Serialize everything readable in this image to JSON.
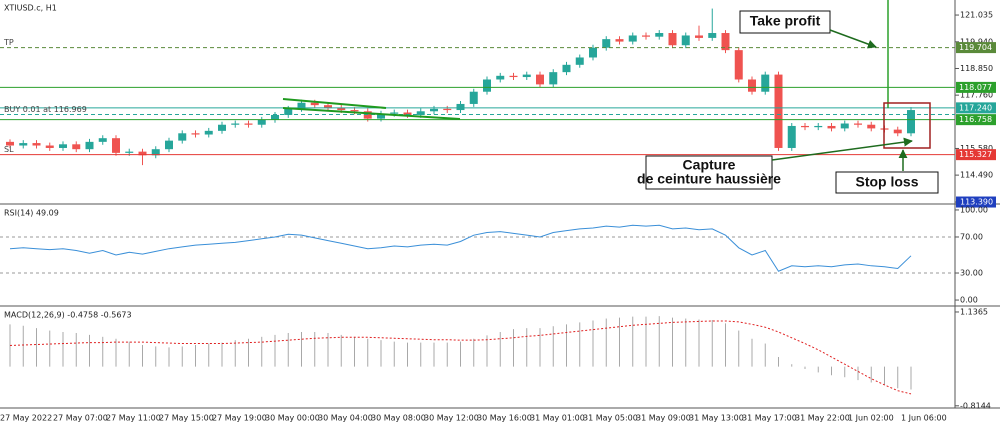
{
  "chart_data": [
    {
      "type": "candlestick",
      "title": "XTIUSD.c, H1",
      "categories": [
        "27 May 2022",
        null,
        null,
        null,
        "27 May 07:00",
        null,
        null,
        null,
        "27 May 11:00",
        null,
        null,
        null,
        "27 May 15:00",
        null,
        null,
        null,
        "27 May 19:00",
        null,
        null,
        null,
        "30 May 00:00",
        null,
        null,
        null,
        "30 May 04:00",
        null,
        null,
        null,
        "30 May 08:00",
        null,
        null,
        null,
        "30 May 12:00",
        null,
        null,
        null,
        "30 May 16:00",
        null,
        null,
        null,
        "31 May 01:00",
        null,
        null,
        null,
        "31 May 05:00",
        null,
        null,
        null,
        "31 May 09:00",
        null,
        null,
        null,
        "31 May 13:00",
        null,
        null,
        null,
        "31 May 17:00",
        null,
        null,
        null,
        "31 May 22:00",
        null,
        null,
        null,
        "1 Jun 02:00",
        null,
        null,
        null,
        "1 Jun 06:00"
      ],
      "open": [
        115.85,
        115.7,
        115.8,
        115.7,
        115.6,
        115.75,
        115.55,
        115.85,
        116.0,
        115.4,
        115.45,
        115.3,
        115.55,
        115.9,
        116.2,
        116.15,
        116.3,
        116.55,
        116.6,
        116.55,
        116.75,
        116.95,
        117.2,
        117.45,
        117.35,
        117.25,
        117.15,
        117.1,
        116.8,
        117.0,
        117.05,
        116.95,
        117.1,
        117.2,
        117.15,
        117.4,
        117.9,
        118.4,
        118.55,
        118.5,
        118.6,
        118.2,
        118.7,
        119.0,
        119.3,
        119.7,
        120.05,
        119.95,
        120.2,
        120.15,
        120.3,
        119.8,
        120.2,
        120.1,
        120.3,
        119.6,
        118.4,
        117.9,
        118.6,
        115.6,
        116.5,
        116.45,
        116.5,
        116.4,
        116.6,
        116.55,
        116.4,
        116.35,
        116.2
      ],
      "high": [
        115.95,
        115.92,
        115.92,
        115.82,
        115.87,
        115.87,
        115.97,
        116.12,
        116.12,
        115.57,
        115.57,
        115.67,
        116.02,
        116.32,
        116.32,
        116.42,
        116.67,
        116.72,
        116.72,
        116.87,
        117.07,
        117.32,
        117.57,
        117.57,
        117.47,
        117.37,
        117.27,
        117.22,
        117.12,
        117.17,
        117.17,
        117.22,
        117.32,
        117.32,
        117.52,
        118.02,
        118.52,
        118.67,
        118.67,
        118.72,
        118.72,
        118.82,
        119.12,
        119.42,
        119.82,
        120.17,
        120.17,
        120.32,
        120.32,
        120.42,
        120.42,
        120.32,
        120.6,
        121.3,
        120.42,
        119.72,
        118.52,
        118.72,
        118.72,
        116.62,
        116.62,
        116.62,
        116.62,
        116.72,
        116.72,
        116.67,
        116.52,
        116.47,
        117.27
      ],
      "low": [
        115.6,
        115.58,
        115.58,
        115.48,
        115.48,
        115.43,
        115.43,
        115.73,
        115.28,
        115.28,
        114.9,
        115.18,
        115.43,
        115.78,
        116.03,
        116.03,
        116.18,
        116.43,
        116.43,
        116.43,
        116.63,
        116.83,
        117.08,
        117.23,
        117.13,
        117.03,
        116.98,
        116.68,
        116.68,
        116.88,
        116.83,
        116.83,
        116.98,
        117.03,
        117.03,
        117.28,
        117.78,
        118.28,
        118.38,
        118.38,
        118.08,
        118.08,
        118.58,
        118.88,
        119.18,
        119.58,
        119.83,
        119.83,
        120.03,
        120.03,
        119.68,
        119.68,
        119.98,
        119.98,
        119.48,
        118.28,
        117.78,
        117.78,
        115.48,
        115.48,
        116.33,
        116.33,
        116.28,
        116.28,
        116.43,
        116.28,
        116.23,
        116.08,
        116.08
      ],
      "close": [
        115.7,
        115.8,
        115.7,
        115.6,
        115.75,
        115.55,
        115.85,
        116.0,
        115.4,
        115.45,
        115.3,
        115.55,
        115.9,
        116.2,
        116.15,
        116.3,
        116.55,
        116.6,
        116.55,
        116.75,
        116.95,
        117.2,
        117.45,
        117.35,
        117.25,
        117.15,
        117.1,
        116.8,
        117.0,
        117.05,
        116.95,
        117.1,
        117.2,
        117.15,
        117.4,
        117.9,
        118.4,
        118.55,
        118.5,
        118.6,
        118.2,
        118.7,
        119.0,
        119.3,
        119.7,
        120.05,
        119.95,
        120.2,
        120.15,
        120.3,
        119.8,
        120.2,
        120.1,
        120.3,
        119.6,
        118.4,
        117.9,
        118.6,
        115.6,
        116.5,
        116.45,
        116.5,
        116.4,
        116.6,
        116.55,
        116.4,
        116.35,
        116.2,
        117.15
      ],
      "up_color": "#26a69a",
      "down_color": "#ef5350",
      "ylim": [
        113.35,
        121.65
      ],
      "yticks": [
        121.035,
        {
          "value": 119.94,
          "label": "119.940"
        },
        {
          "value": 118.85,
          "label": "118.850"
        },
        {
          "value": 117.76,
          "label": "117.760"
        },
        {
          "value": 115.58,
          "label": "115.580"
        },
        {
          "value": 114.49,
          "label": "114.490"
        },
        {
          "value": 113.39,
          "label": "113.390",
          "color": "#1f3fbf"
        }
      ],
      "levels": [
        {
          "name": "TP",
          "value": 119.704,
          "color": "#5a8a3a",
          "dash": true,
          "box": true
        },
        {
          "value": 118.077,
          "color": "#2ca02c",
          "box": true
        },
        {
          "value": 117.24,
          "value_label": "117.240",
          "color": "#26a69a",
          "box": true
        },
        {
          "name": "BUY 0.01 at 116.969",
          "value": 116.969,
          "color": "#26a69a",
          "dash": true,
          "box": false
        },
        {
          "value": 116.758,
          "color": "#2ca02c",
          "box": true
        },
        {
          "name": "SL",
          "value": 115.327,
          "color": "#e53935",
          "box": true
        }
      ],
      "annotations": {
        "take_profit": "Take profit",
        "capture": [
          "Capture",
          "de ceinture haussière"
        ],
        "stop_loss": "Stop loss"
      }
    },
    {
      "type": "line",
      "title": "RSI(14) 49.09",
      "series": [
        {
          "color": "#3a8fd8",
          "values": [
            57,
            58,
            57,
            56,
            57,
            55,
            52,
            55,
            50,
            53,
            51,
            54,
            57,
            59,
            61,
            62,
            63,
            64,
            66,
            68,
            70,
            73,
            72,
            69,
            66,
            63,
            60,
            57,
            58,
            60,
            59,
            61,
            62,
            61,
            65,
            72,
            75,
            76,
            74,
            72,
            70,
            75,
            77,
            79,
            80,
            82,
            81,
            83,
            82,
            83,
            79,
            80,
            78,
            79,
            72,
            58,
            50,
            55,
            32,
            38,
            37,
            38,
            37,
            39,
            40,
            38,
            37,
            35,
            49.09
          ]
        }
      ],
      "ylim": [
        -5.5,
        105.5
      ],
      "yticks": [
        {
          "value": 100,
          "label": "100.00"
        },
        {
          "value": 70,
          "label": "70.00"
        },
        {
          "value": 30,
          "label": "30.00"
        },
        {
          "value": 0,
          "label": "0.00"
        }
      ],
      "levels": [
        70,
        30
      ]
    },
    {
      "type": "macd",
      "title": "MACD(12,26,9) -0.4758 -0.5673",
      "series": [
        {
          "kind": "bar",
          "color": "#a8a8a8",
          "values": [
            0.88,
            0.85,
            0.8,
            0.75,
            0.72,
            0.7,
            0.66,
            0.62,
            0.58,
            0.52,
            0.45,
            0.42,
            0.4,
            0.42,
            0.45,
            0.48,
            0.5,
            0.55,
            0.58,
            0.62,
            0.66,
            0.7,
            0.72,
            0.72,
            0.7,
            0.66,
            0.62,
            0.58,
            0.55,
            0.52,
            0.5,
            0.5,
            0.5,
            0.5,
            0.52,
            0.58,
            0.65,
            0.72,
            0.78,
            0.8,
            0.8,
            0.84,
            0.88,
            0.92,
            0.96,
            1.0,
            1.02,
            1.04,
            1.04,
            1.05,
            1.02,
            1.0,
            0.98,
            0.97,
            0.9,
            0.75,
            0.58,
            0.48,
            0.2,
            0.05,
            -0.05,
            -0.12,
            -0.18,
            -0.22,
            -0.28,
            -0.33,
            -0.38,
            -0.45,
            -0.4758
          ]
        },
        {
          "kind": "line",
          "color": "#e02020",
          "dashed": true,
          "values": [
            0.44,
            0.45,
            0.46,
            0.47,
            0.48,
            0.49,
            0.5,
            0.5,
            0.51,
            0.51,
            0.51,
            0.5,
            0.49,
            0.48,
            0.48,
            0.48,
            0.48,
            0.49,
            0.5,
            0.51,
            0.53,
            0.55,
            0.57,
            0.59,
            0.6,
            0.61,
            0.61,
            0.61,
            0.6,
            0.59,
            0.58,
            0.57,
            0.56,
            0.56,
            0.55,
            0.55,
            0.56,
            0.58,
            0.6,
            0.63,
            0.65,
            0.68,
            0.71,
            0.74,
            0.77,
            0.8,
            0.83,
            0.86,
            0.88,
            0.9,
            0.92,
            0.93,
            0.94,
            0.95,
            0.95,
            0.93,
            0.88,
            0.82,
            0.72,
            0.6,
            0.48,
            0.35,
            0.2,
            0.05,
            -0.1,
            -0.25,
            -0.38,
            -0.5,
            -0.5673
          ]
        }
      ],
      "ylim": [
        -0.86,
        1.24
      ],
      "yticks": [
        1.1365,
        -0.8144
      ]
    }
  ]
}
